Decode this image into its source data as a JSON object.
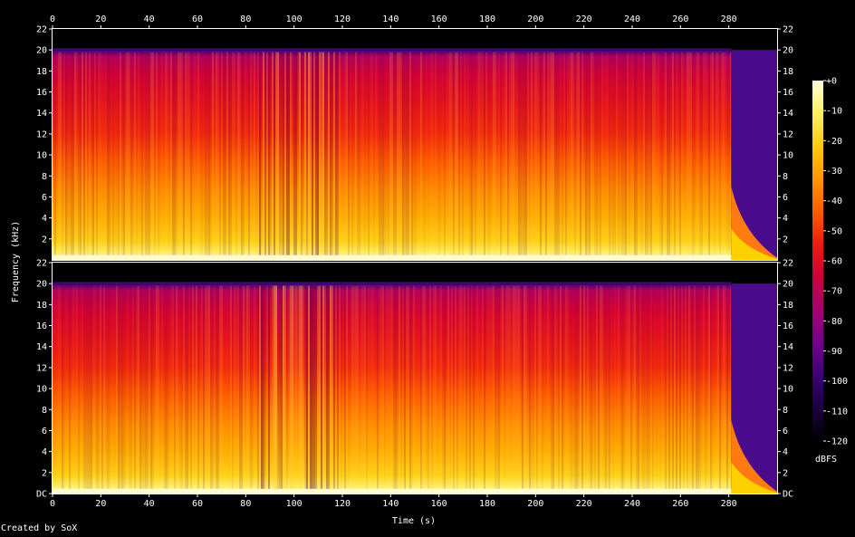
{
  "chart_data": {
    "type": "heatmap",
    "title": "",
    "xlabel": "Time (s)",
    "ylabel": "Frequency (kHz)",
    "xlim": [
      0,
      300
    ],
    "x_ticks": [
      "0",
      "20",
      "40",
      "60",
      "80",
      "100",
      "120",
      "140",
      "160",
      "180",
      "200",
      "220",
      "240",
      "260",
      "280"
    ],
    "ylim_khz": [
      0,
      22
    ],
    "y_ticks_top_channel": [
      "2",
      "4",
      "6",
      "8",
      "10",
      "12",
      "14",
      "16",
      "18",
      "20",
      "22"
    ],
    "y_ticks_bottom_channel": [
      "DC",
      "2",
      "4",
      "6",
      "8",
      "10",
      "12",
      "14",
      "16",
      "18",
      "20",
      "22"
    ],
    "channels": 2,
    "spectral_cutoff_khz": 20,
    "audio_end_s": 281,
    "colorbar": {
      "label": "dBFS",
      "range": [
        -120,
        0
      ],
      "ticks": [
        "+0",
        "-10",
        "-20",
        "-30",
        "-40",
        "-50",
        "-60",
        "-70",
        "-80",
        "-90",
        "-100",
        "-110",
        "-120"
      ],
      "colors": [
        "#000000",
        "#1a0040",
        "#3c0073",
        "#72008a",
        "#a30070",
        "#d0003a",
        "#ee1a10",
        "#ff5a00",
        "#ff9800",
        "#ffcb0a",
        "#fff060",
        "#ffffdc"
      ]
    }
  },
  "footer": {
    "credit": "Created by SoX"
  }
}
